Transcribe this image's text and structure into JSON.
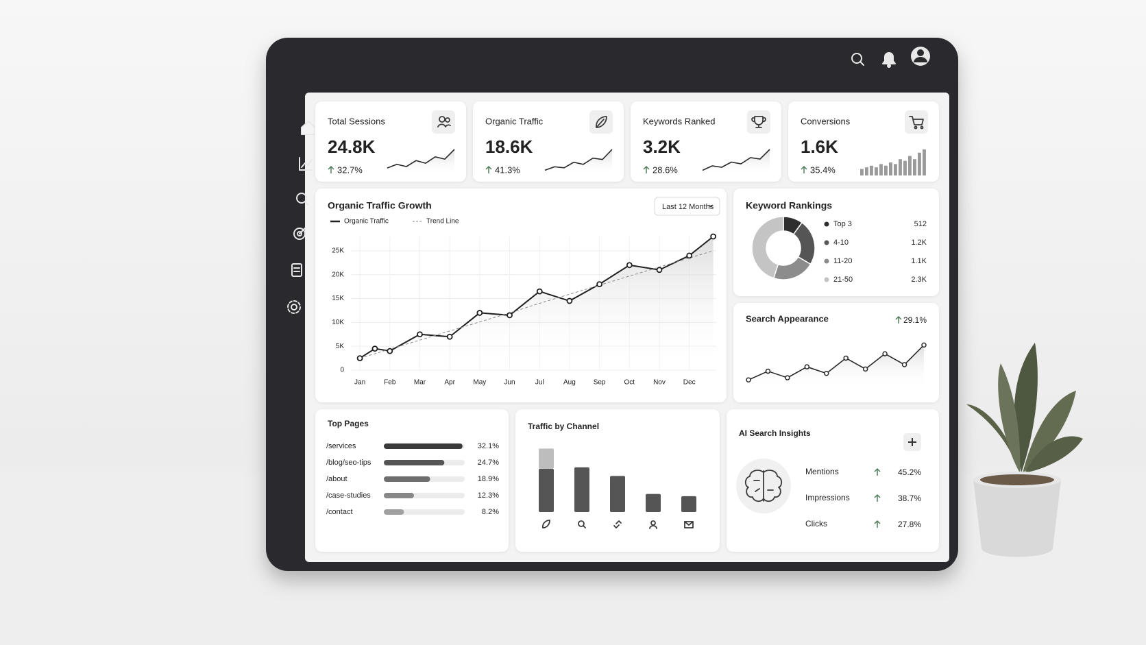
{
  "kpis": [
    {
      "label": "Total Sessions",
      "value": "24.8K",
      "change": "32.7%",
      "spark": "line",
      "trend": [
        2,
        3,
        2.4,
        4,
        3.3,
        5,
        4.4,
        7
      ]
    },
    {
      "label": "Organic Traffic",
      "value": "18.6K",
      "change": "41.3%",
      "spark": "line",
      "trend": [
        1.5,
        2.5,
        2.2,
        3.8,
        3.2,
        5,
        4.6,
        7.5
      ]
    },
    {
      "label": "Keywords Ranked",
      "value": "3.2K",
      "change": "28.6%",
      "spark": "line",
      "trend": [
        1.5,
        2.8,
        2.4,
        3.9,
        3.4,
        5.2,
        4.8,
        7.6
      ]
    },
    {
      "label": "Conversions",
      "value": "1.6K",
      "change": "35.4%",
      "spark": "bar",
      "trend": [
        2,
        2.5,
        3,
        2.5,
        3.5,
        3,
        4,
        3.5,
        5,
        4.5,
        6,
        5,
        7,
        8
      ]
    }
  ],
  "chart_data": [
    {
      "type": "line",
      "title": "Organic Traffic Growth",
      "filter": "Last 12 Months",
      "x": [
        1,
        1.5,
        2,
        3,
        4,
        5,
        6,
        7,
        8,
        9,
        10,
        11,
        12,
        12.8
      ],
      "xlim": [
        0.7,
        12.9
      ],
      "xticks": [
        {
          "value": 1,
          "label": "Jan"
        },
        {
          "value": 2,
          "label": "Feb"
        },
        {
          "value": 3,
          "label": "Mar"
        },
        {
          "value": 4,
          "label": "Apr"
        },
        {
          "value": 5,
          "label": "May"
        },
        {
          "value": 6,
          "label": "Jun"
        },
        {
          "value": 7,
          "label": "Jul"
        },
        {
          "value": 8,
          "label": "Aug"
        },
        {
          "value": 9,
          "label": "Sep"
        },
        {
          "value": 10,
          "label": "Oct"
        },
        {
          "value": 11,
          "label": "Nov"
        },
        {
          "value": 12,
          "label": "Dec"
        }
      ],
      "ylim": [
        0,
        28000
      ],
      "yticks": [
        0,
        {
          "value": 5000,
          "label": "5K"
        },
        {
          "value": 10000,
          "label": "10K"
        },
        {
          "value": 15000,
          "label": "15K"
        },
        {
          "value": 20000,
          "label": "20K"
        },
        {
          "value": 25000,
          "label": "25K"
        }
      ],
      "grid": true,
      "series": [
        {
          "name": "Organic Traffic",
          "color": "#1f1f1f",
          "values": [
            2500,
            4500,
            4000,
            7500,
            7000,
            12000,
            11500,
            16500,
            14500,
            18000,
            22000,
            21000,
            24000,
            28000
          ]
        },
        {
          "name": "Trend Line",
          "color": "#8a8a8a",
          "values": [
            2500,
            3450,
            4400,
            6300,
            8200,
            10100,
            12000,
            14000,
            15900,
            17800,
            19700,
            21600,
            23500,
            25000
          ]
        }
      ]
    },
    {
      "type": "donut",
      "title": "Keyword Rankings",
      "categories": [
        "Top 3",
        "4-10",
        "11-20",
        "21-50"
      ],
      "values": [
        512,
        1200,
        1100,
        2300
      ],
      "value_labels": [
        "512",
        "1.2K",
        "1.1K",
        "2.3K"
      ],
      "colors": [
        "#2e2e2e",
        "#555555",
        "#8c8c8c",
        "#c4c4c4"
      ]
    },
    {
      "type": "sparkline",
      "title": "Search Appearance",
      "change": "29.1%",
      "values": [
        2,
        4,
        2.5,
        5,
        3.5,
        7,
        4.5,
        8,
        5.5,
        10
      ],
      "ylim": [
        0,
        11
      ],
      "color": "#2a2a2a"
    },
    {
      "type": "hbar",
      "title": "Top Pages",
      "categories": [
        "/services",
        "/blog/seo-tips",
        "/about",
        "/case-studies",
        "/contact"
      ],
      "values": [
        32.1,
        24.7,
        18.9,
        12.3,
        8.2
      ],
      "value_labels": [
        "32.1%",
        "24.7%",
        "18.9%",
        "12.3%",
        "8.2%"
      ],
      "xlim": [
        0,
        33
      ],
      "colors": [
        "#3a3a3a",
        "#555555",
        "#6e6e6e",
        "#888888",
        "#a0a0a0"
      ]
    },
    {
      "type": "stacked-bar",
      "title": "Traffic by Channel",
      "ylim": [
        0,
        95
      ],
      "series": [
        {
          "color": "#555555",
          "values": [
            60,
            62,
            50,
            25,
            22
          ]
        },
        {
          "color": "#bdbdbd",
          "values": [
            28,
            0,
            0,
            0,
            0
          ]
        }
      ]
    }
  ],
  "insights": {
    "title": "AI Search Insights",
    "items": [
      {
        "label": "Mentions",
        "change": "45.2%"
      },
      {
        "label": "Impressions",
        "change": "38.7%"
      },
      {
        "label": "Clicks",
        "change": "27.8%"
      }
    ]
  }
}
